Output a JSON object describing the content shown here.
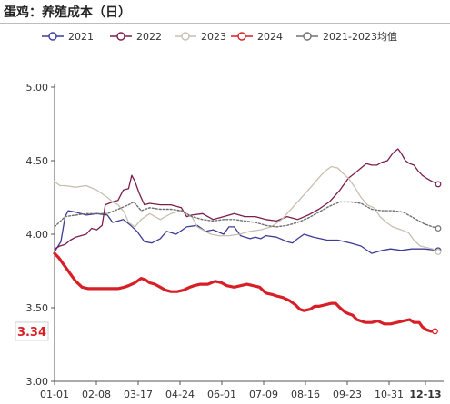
{
  "title": "蛋鸡：养殖成本（日）",
  "chart_data": {
    "type": "line",
    "title": "蛋鸡：养殖成本（日）",
    "xlabel": "",
    "ylabel": "",
    "ylim": [
      3.0,
      5.0
    ],
    "yticks": [
      "3.00",
      "3.50",
      "4.00",
      "4.50",
      "5.00"
    ],
    "x_ticks": [
      "01-01",
      "02-08",
      "03-17",
      "04-24",
      "06-01",
      "07-09",
      "08-16",
      "09-23",
      "10-31",
      "12-13"
    ],
    "highlight_tick": "12-13",
    "legend_position": "top",
    "grid": false,
    "annotation": {
      "text": "3.34",
      "value": 3.34,
      "color": "#d61f26"
    },
    "series": [
      {
        "name": "2021",
        "color": "#3c3c96",
        "dash": "",
        "width": 1.3,
        "points": [
          [
            0,
            3.88
          ],
          [
            6,
            3.95
          ],
          [
            10,
            4.12
          ],
          [
            13,
            4.16
          ],
          [
            20,
            4.15
          ],
          [
            30,
            4.13
          ],
          [
            40,
            4.14
          ],
          [
            50,
            4.13
          ],
          [
            55,
            4.08
          ],
          [
            65,
            4.1
          ],
          [
            72,
            4.06
          ],
          [
            78,
            4.02
          ],
          [
            85,
            3.95
          ],
          [
            92,
            3.94
          ],
          [
            100,
            3.97
          ],
          [
            106,
            4.02
          ],
          [
            115,
            4.0
          ],
          [
            125,
            4.05
          ],
          [
            135,
            4.06
          ],
          [
            143,
            4.02
          ],
          [
            150,
            4.03
          ],
          [
            160,
            4.0
          ],
          [
            165,
            4.05
          ],
          [
            170,
            4.05
          ],
          [
            176,
            3.99
          ],
          [
            185,
            3.97
          ],
          [
            190,
            3.98
          ],
          [
            195,
            3.97
          ],
          [
            200,
            3.99
          ],
          [
            210,
            3.98
          ],
          [
            220,
            3.95
          ],
          [
            225,
            3.94
          ],
          [
            230,
            3.97
          ],
          [
            236,
            4.0
          ],
          [
            245,
            3.98
          ],
          [
            258,
            3.96
          ],
          [
            268,
            3.96
          ],
          [
            280,
            3.94
          ],
          [
            290,
            3.92
          ],
          [
            300,
            3.87
          ],
          [
            310,
            3.89
          ],
          [
            318,
            3.9
          ],
          [
            328,
            3.89
          ],
          [
            338,
            3.9
          ],
          [
            350,
            3.9
          ],
          [
            363,
            3.89
          ]
        ]
      },
      {
        "name": "2022",
        "color": "#7b1e4d",
        "dash": "",
        "width": 1.3,
        "points": [
          [
            0,
            3.9
          ],
          [
            5,
            3.92
          ],
          [
            10,
            3.93
          ],
          [
            15,
            3.96
          ],
          [
            20,
            3.98
          ],
          [
            25,
            3.99
          ],
          [
            30,
            4.0
          ],
          [
            35,
            4.04
          ],
          [
            40,
            4.03
          ],
          [
            45,
            4.06
          ],
          [
            48,
            4.2
          ],
          [
            55,
            4.22
          ],
          [
            60,
            4.23
          ],
          [
            65,
            4.3
          ],
          [
            70,
            4.31
          ],
          [
            73,
            4.4
          ],
          [
            76,
            4.36
          ],
          [
            80,
            4.28
          ],
          [
            85,
            4.2
          ],
          [
            90,
            4.21
          ],
          [
            100,
            4.2
          ],
          [
            110,
            4.2
          ],
          [
            120,
            4.18
          ],
          [
            125,
            4.12
          ],
          [
            130,
            4.13
          ],
          [
            140,
            4.14
          ],
          [
            150,
            4.1
          ],
          [
            160,
            4.12
          ],
          [
            170,
            4.14
          ],
          [
            180,
            4.12
          ],
          [
            190,
            4.12
          ],
          [
            200,
            4.1
          ],
          [
            210,
            4.09
          ],
          [
            220,
            4.12
          ],
          [
            230,
            4.1
          ],
          [
            240,
            4.13
          ],
          [
            250,
            4.17
          ],
          [
            260,
            4.22
          ],
          [
            265,
            4.26
          ],
          [
            270,
            4.3
          ],
          [
            275,
            4.35
          ],
          [
            278,
            4.38
          ],
          [
            285,
            4.42
          ],
          [
            290,
            4.45
          ],
          [
            295,
            4.48
          ],
          [
            300,
            4.47
          ],
          [
            305,
            4.47
          ],
          [
            310,
            4.49
          ],
          [
            315,
            4.5
          ],
          [
            320,
            4.55
          ],
          [
            325,
            4.58
          ],
          [
            328,
            4.55
          ],
          [
            332,
            4.5
          ],
          [
            336,
            4.48
          ],
          [
            340,
            4.47
          ],
          [
            344,
            4.43
          ],
          [
            348,
            4.4
          ],
          [
            352,
            4.38
          ],
          [
            357,
            4.36
          ],
          [
            363,
            4.34
          ]
        ]
      },
      {
        "name": "2023",
        "color": "#c8bfb0",
        "dash": "",
        "width": 1.3,
        "points": [
          [
            0,
            4.36
          ],
          [
            5,
            4.33
          ],
          [
            10,
            4.33
          ],
          [
            20,
            4.32
          ],
          [
            30,
            4.33
          ],
          [
            40,
            4.3
          ],
          [
            50,
            4.25
          ],
          [
            55,
            4.22
          ],
          [
            60,
            4.2
          ],
          [
            66,
            4.15
          ],
          [
            70,
            4.08
          ],
          [
            76,
            4.05
          ],
          [
            82,
            4.1
          ],
          [
            90,
            4.14
          ],
          [
            100,
            4.1
          ],
          [
            110,
            4.14
          ],
          [
            120,
            4.16
          ],
          [
            130,
            4.12
          ],
          [
            135,
            4.05
          ],
          [
            140,
            4.03
          ],
          [
            148,
            4.0
          ],
          [
            155,
            3.99
          ],
          [
            165,
            3.99
          ],
          [
            175,
            4.0
          ],
          [
            185,
            4.02
          ],
          [
            195,
            4.03
          ],
          [
            205,
            4.05
          ],
          [
            215,
            4.1
          ],
          [
            225,
            4.18
          ],
          [
            235,
            4.26
          ],
          [
            245,
            4.34
          ],
          [
            252,
            4.4
          ],
          [
            258,
            4.44
          ],
          [
            262,
            4.46
          ],
          [
            268,
            4.45
          ],
          [
            272,
            4.42
          ],
          [
            278,
            4.38
          ],
          [
            284,
            4.32
          ],
          [
            290,
            4.25
          ],
          [
            296,
            4.2
          ],
          [
            302,
            4.18
          ],
          [
            308,
            4.12
          ],
          [
            314,
            4.08
          ],
          [
            320,
            4.05
          ],
          [
            328,
            4.03
          ],
          [
            335,
            4.01
          ],
          [
            340,
            3.96
          ],
          [
            346,
            3.92
          ],
          [
            352,
            3.91
          ],
          [
            358,
            3.9
          ],
          [
            363,
            3.88
          ]
        ]
      },
      {
        "name": "2024",
        "color": "#d61f26",
        "dash": "",
        "width": 3.2,
        "points": [
          [
            0,
            3.87
          ],
          [
            4,
            3.84
          ],
          [
            8,
            3.8
          ],
          [
            12,
            3.76
          ],
          [
            16,
            3.72
          ],
          [
            20,
            3.68
          ],
          [
            26,
            3.64
          ],
          [
            32,
            3.63
          ],
          [
            40,
            3.63
          ],
          [
            50,
            3.63
          ],
          [
            60,
            3.63
          ],
          [
            66,
            3.64
          ],
          [
            70,
            3.65
          ],
          [
            76,
            3.67
          ],
          [
            82,
            3.7
          ],
          [
            86,
            3.69
          ],
          [
            90,
            3.67
          ],
          [
            95,
            3.66
          ],
          [
            100,
            3.64
          ],
          [
            105,
            3.62
          ],
          [
            110,
            3.61
          ],
          [
            116,
            3.61
          ],
          [
            122,
            3.62
          ],
          [
            128,
            3.64
          ],
          [
            132,
            3.65
          ],
          [
            138,
            3.66
          ],
          [
            145,
            3.66
          ],
          [
            152,
            3.68
          ],
          [
            158,
            3.67
          ],
          [
            163,
            3.65
          ],
          [
            170,
            3.64
          ],
          [
            176,
            3.65
          ],
          [
            182,
            3.66
          ],
          [
            188,
            3.65
          ],
          [
            194,
            3.64
          ],
          [
            200,
            3.6
          ],
          [
            206,
            3.59
          ],
          [
            210,
            3.58
          ],
          [
            216,
            3.57
          ],
          [
            222,
            3.55
          ],
          [
            228,
            3.52
          ],
          [
            232,
            3.49
          ],
          [
            236,
            3.48
          ],
          [
            242,
            3.49
          ],
          [
            246,
            3.51
          ],
          [
            250,
            3.51
          ],
          [
            256,
            3.52
          ],
          [
            262,
            3.53
          ],
          [
            266,
            3.53
          ],
          [
            270,
            3.5
          ],
          [
            275,
            3.47
          ],
          [
            278,
            3.46
          ],
          [
            282,
            3.45
          ],
          [
            286,
            3.42
          ],
          [
            290,
            3.41
          ],
          [
            294,
            3.4
          ],
          [
            300,
            3.4
          ],
          [
            306,
            3.41
          ],
          [
            312,
            3.39
          ],
          [
            318,
            3.39
          ],
          [
            324,
            3.4
          ],
          [
            330,
            3.41
          ],
          [
            336,
            3.42
          ],
          [
            340,
            3.4
          ],
          [
            345,
            3.4
          ],
          [
            348,
            3.37
          ],
          [
            352,
            3.35
          ],
          [
            356,
            3.34
          ],
          [
            360,
            3.34
          ]
        ]
      },
      {
        "name": "2021-2023均值",
        "color": "#707070",
        "dash": "2,2",
        "width": 1.4,
        "points": [
          [
            0,
            4.05
          ],
          [
            10,
            4.12
          ],
          [
            20,
            4.13
          ],
          [
            30,
            4.14
          ],
          [
            40,
            4.14
          ],
          [
            50,
            4.14
          ],
          [
            60,
            4.17
          ],
          [
            70,
            4.2
          ],
          [
            75,
            4.22
          ],
          [
            82,
            4.16
          ],
          [
            90,
            4.18
          ],
          [
            100,
            4.17
          ],
          [
            110,
            4.17
          ],
          [
            120,
            4.16
          ],
          [
            130,
            4.12
          ],
          [
            140,
            4.1
          ],
          [
            150,
            4.09
          ],
          [
            160,
            4.1
          ],
          [
            170,
            4.1
          ],
          [
            180,
            4.09
          ],
          [
            190,
            4.08
          ],
          [
            200,
            4.06
          ],
          [
            210,
            4.05
          ],
          [
            220,
            4.06
          ],
          [
            230,
            4.08
          ],
          [
            240,
            4.11
          ],
          [
            250,
            4.15
          ],
          [
            260,
            4.19
          ],
          [
            270,
            4.22
          ],
          [
            280,
            4.22
          ],
          [
            290,
            4.21
          ],
          [
            300,
            4.17
          ],
          [
            310,
            4.16
          ],
          [
            320,
            4.16
          ],
          [
            330,
            4.15
          ],
          [
            340,
            4.11
          ],
          [
            350,
            4.07
          ],
          [
            358,
            4.05
          ],
          [
            363,
            4.04
          ]
        ]
      }
    ]
  }
}
